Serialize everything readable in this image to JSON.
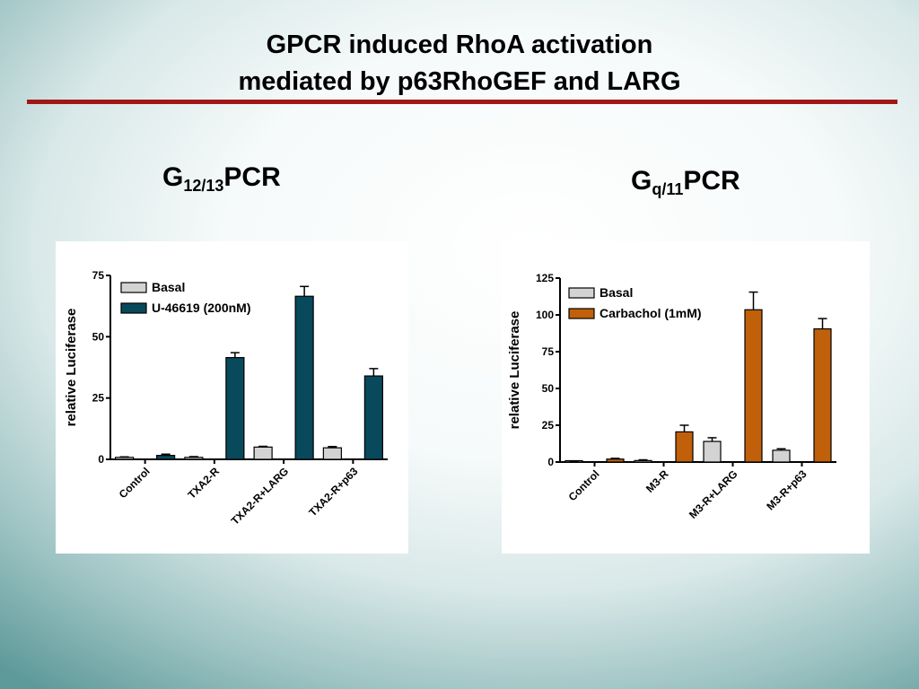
{
  "slide": {
    "title_line1": "GPCR induced RhoA activation",
    "title_line2": "mediated by p63RhoGEF and LARG",
    "left_heading": {
      "main": "G",
      "sub": "12/13",
      "tail": "PCR"
    },
    "right_heading": {
      "main": "G",
      "sub": "q/11",
      "tail": "PCR"
    }
  },
  "chart_data": [
    {
      "type": "bar",
      "title": "",
      "xlabel": "",
      "ylabel": "relative Luciferase",
      "ylim": [
        0,
        75
      ],
      "yticks": [
        0,
        25,
        50,
        75
      ],
      "categories": [
        "Control",
        "TXA2-R",
        "TXA2-R+LARG",
        "TXA2-R+p63"
      ],
      "series": [
        {
          "name": "Basal",
          "color": "#d3d3d3",
          "values": [
            0.8,
            0.8,
            5,
            4.7
          ],
          "errors": [
            0.2,
            0.3,
            0.3,
            0.5
          ]
        },
        {
          "name": "U-46619 (200nM)",
          "color": "#08495c",
          "values": [
            1.6,
            41.5,
            66.5,
            34
          ],
          "errors": [
            0.5,
            2,
            4,
            3
          ]
        }
      ],
      "legend_position": "top-left",
      "grid": false
    },
    {
      "type": "bar",
      "title": "",
      "xlabel": "",
      "ylabel": "relative Luciferase",
      "ylim": [
        0,
        125
      ],
      "yticks": [
        0,
        25,
        50,
        75,
        100,
        125
      ],
      "categories": [
        "Control",
        "M3-R",
        "M3-R+LARG",
        "M3-R+p63"
      ],
      "series": [
        {
          "name": "Basal",
          "color": "#d3d3d3",
          "values": [
            0.5,
            1,
            14,
            8
          ],
          "errors": [
            0.2,
            0.5,
            2.5,
            1
          ]
        },
        {
          "name": "Carbachol (1mM)",
          "color": "#c0600a",
          "values": [
            2,
            20.5,
            103.5,
            90.5
          ],
          "errors": [
            0.5,
            4.5,
            12,
            7
          ]
        }
      ],
      "legend_position": "top-left",
      "grid": false
    }
  ]
}
